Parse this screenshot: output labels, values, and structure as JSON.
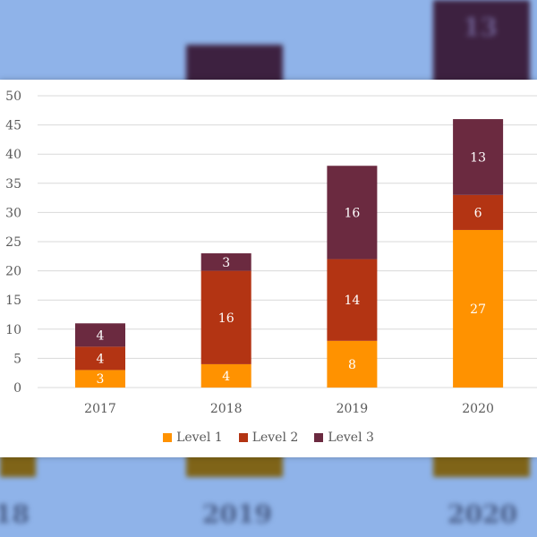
{
  "chart_data": {
    "type": "bar",
    "stacked": true,
    "title": "",
    "xlabel": "",
    "ylabel": "",
    "categories": [
      "2017",
      "2018",
      "2019",
      "2020"
    ],
    "series": [
      {
        "name": "Level 1",
        "color": "#ff9200",
        "values": [
          3,
          4,
          8,
          27
        ]
      },
      {
        "name": "Level 2",
        "color": "#b33413",
        "values": [
          4,
          16,
          14,
          6
        ]
      },
      {
        "name": "Level 3",
        "color": "#6b2a40",
        "values": [
          4,
          3,
          16,
          13
        ]
      }
    ],
    "ylim": [
      0,
      50
    ],
    "yticks": [
      0,
      5,
      10,
      15,
      20,
      25,
      30,
      35,
      40,
      45,
      50
    ],
    "grid": true,
    "legend_position": "bottom",
    "data_labels": true
  },
  "background": {
    "color": "#8fb3e9",
    "blurred_labels": [
      "18",
      "2019",
      "2020"
    ],
    "blurred_value": "13"
  }
}
